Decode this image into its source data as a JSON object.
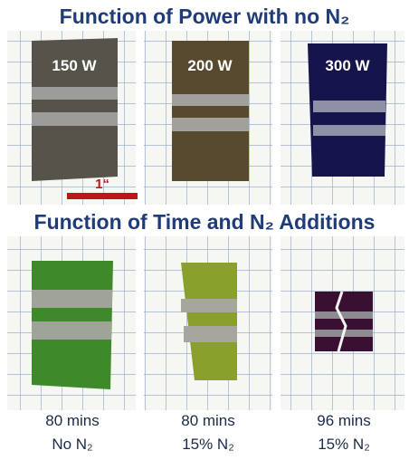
{
  "title_top": "Function of Power with no N₂",
  "row1": [
    {
      "label": "150 W"
    },
    {
      "label": "200 W"
    },
    {
      "label": "300 W"
    }
  ],
  "scale_bar": "1“",
  "title_bottom": "Function of Time and N₂ Additions",
  "row2": [
    {
      "time": "80 mins",
      "gas": "No N₂"
    },
    {
      "time": "80 mins",
      "gas": "15% N₂"
    },
    {
      "time": "96 mins",
      "gas": "15% N₂"
    }
  ]
}
